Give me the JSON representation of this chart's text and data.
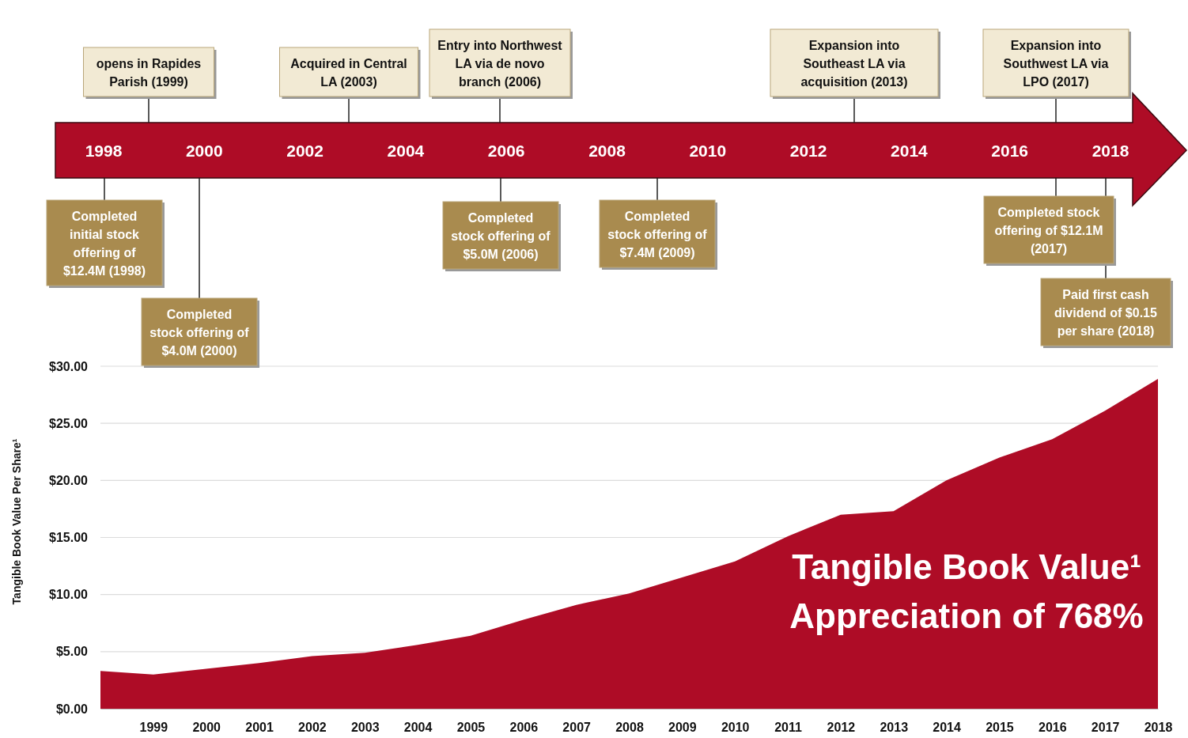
{
  "chart_data": {
    "type": "area",
    "ylabel": "Tangible Book Value Per Share¹",
    "x": [
      1998,
      1999,
      2000,
      2001,
      2002,
      2003,
      2004,
      2005,
      2006,
      2007,
      2008,
      2009,
      2010,
      2011,
      2012,
      2013,
      2014,
      2015,
      2016,
      2017,
      2018
    ],
    "series": [
      {
        "color": "#ae0c26",
        "values": [
          3.3,
          3.0,
          3.5,
          4.0,
          4.6,
          4.9,
          5.6,
          6.4,
          7.8,
          9.1,
          10.1,
          11.5,
          12.9,
          15.1,
          17.0,
          17.3,
          20.0,
          22.0,
          23.6,
          26.1,
          28.9
        ]
      }
    ],
    "xlim": [
      1998,
      2018
    ],
    "xticks": [
      1999,
      2000,
      2001,
      2002,
      2003,
      2004,
      2005,
      2006,
      2007,
      2008,
      2009,
      2010,
      2011,
      2012,
      2013,
      2014,
      2015,
      2016,
      2017,
      2018
    ],
    "ylim": [
      0,
      30
    ],
    "yticks": [
      {
        "value": 0,
        "label": "$0.00"
      },
      {
        "value": 5,
        "label": "$5.00"
      },
      {
        "value": 10,
        "label": "$10.00"
      },
      {
        "value": 15,
        "label": "$15.00"
      },
      {
        "value": 20,
        "label": "$20.00"
      },
      {
        "value": 25,
        "label": "$25.00"
      },
      {
        "value": 30,
        "label": "$30.00"
      }
    ],
    "grid": "y",
    "annotations": [
      "1998",
      "2000",
      "2002",
      "2004",
      "2006",
      "2008",
      "2010",
      "2012",
      "2014",
      "2016",
      "2018",
      "opens in Rapides Parish (1999)",
      "Acquired in Central LA (2003)",
      "Entry into Northwest LA via de novo branch (2006)",
      "Expansion into Southeast LA via acquisition (2013)",
      "Expansion into Southwest LA via LPO (2017)",
      "Completed initial stock offering of $12.4M (1998)",
      "Completed stock offering of $4.0M (2000)",
      "Completed stock offering of $5.0M (2006)",
      "Completed stock offering of $7.4M (2009)",
      "Completed stock offering of $12.1M (2017)",
      "Paid first cash dividend of $0.15 per share (2018)",
      "Tangible Book Value¹ Appreciation of 768%"
    ]
  }
}
